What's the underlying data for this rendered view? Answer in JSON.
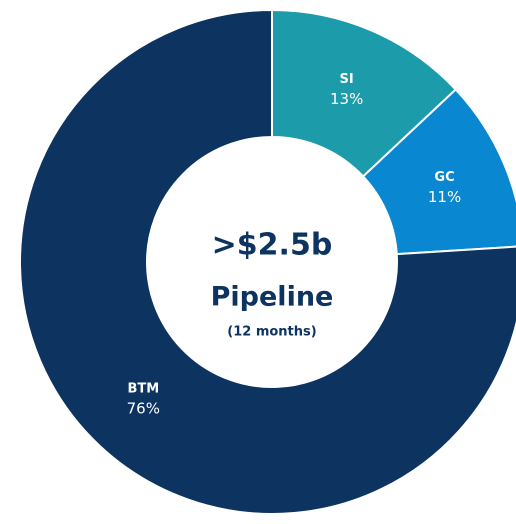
{
  "chart_data": {
    "type": "donut",
    "categories": [
      "SI",
      "GC",
      "BTM"
    ],
    "values": [
      13,
      11,
      76
    ],
    "value_labels": [
      "13%",
      "11%",
      "76%"
    ],
    "colors": [
      "#1c9cab",
      "#0a87d1",
      "#0d3461"
    ],
    "annotations": [
      ">$2.5b",
      "Pipeline",
      "(12 months)"
    ]
  }
}
